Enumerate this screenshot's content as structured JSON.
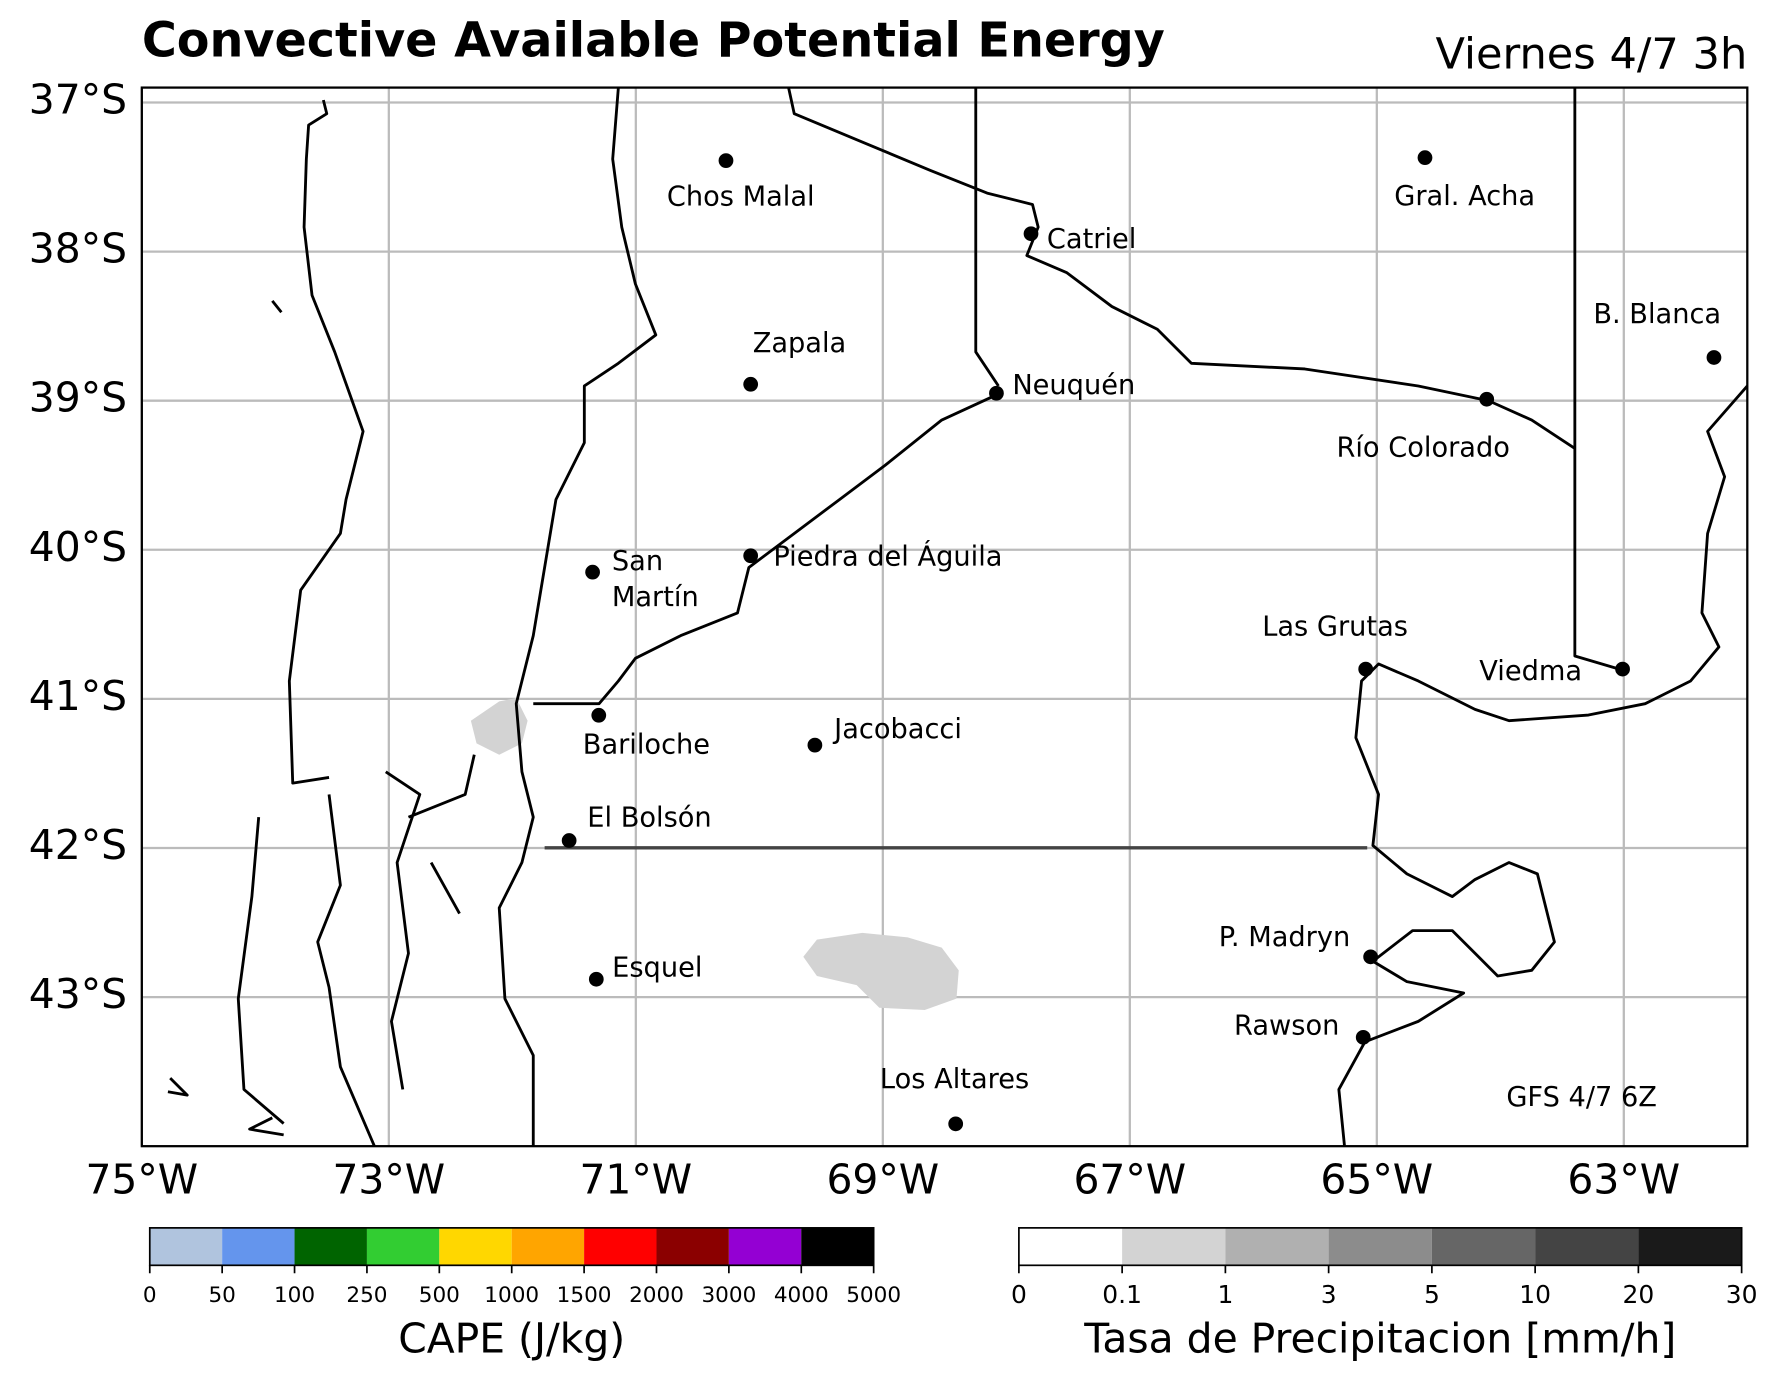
{
  "title": "Convective Available Potential Energy",
  "valid_time": "Viernes 4/7 3h",
  "annotation": "GFS 4/7 6Z",
  "map": {
    "xlim": [
      -75,
      -62
    ],
    "ylim": [
      -44,
      -36.9
    ],
    "grid": true,
    "xticks": [
      {
        "value": -75,
        "label": "75°W"
      },
      {
        "value": -73,
        "label": "73°W"
      },
      {
        "value": -71,
        "label": "71°W"
      },
      {
        "value": -69,
        "label": "69°W"
      },
      {
        "value": -67,
        "label": "67°W"
      },
      {
        "value": -65,
        "label": "65°W"
      },
      {
        "value": -63,
        "label": "63°W"
      }
    ],
    "yticks": [
      {
        "value": -37,
        "label": "37°S"
      },
      {
        "value": -38,
        "label": "38°S"
      },
      {
        "value": -39,
        "label": "39°S"
      },
      {
        "value": -40,
        "label": "40°S"
      },
      {
        "value": -41,
        "label": "41°S"
      },
      {
        "value": -42,
        "label": "42°S"
      },
      {
        "value": -43,
        "label": "43°S"
      }
    ],
    "cities": [
      {
        "label": "Chos Malal",
        "lon": -70.27,
        "lat": -37.39
      },
      {
        "label": "Gral. Acha",
        "lon": -64.61,
        "lat": -37.37
      },
      {
        "label": "Catriel",
        "lon": -67.8,
        "lat": -37.88
      },
      {
        "label": "B. Blanca",
        "lon": -62.27,
        "lat": -38.71
      },
      {
        "label": "Zapala",
        "lon": -70.07,
        "lat": -38.89
      },
      {
        "label": "Neuquén",
        "lon": -68.08,
        "lat": -38.95
      },
      {
        "label": "Río Colorado",
        "lon": -64.11,
        "lat": -38.99
      },
      {
        "label": "San\nMartín",
        "lon": -71.35,
        "lat": -40.15
      },
      {
        "label": "Piedra del Águila",
        "lon": -70.07,
        "lat": -40.04
      },
      {
        "label": "Las Grutas",
        "lon": -65.09,
        "lat": -40.8
      },
      {
        "label": "Viedma",
        "lon": -63.01,
        "lat": -40.8
      },
      {
        "label": "Bariloche",
        "lon": -71.3,
        "lat": -41.11
      },
      {
        "label": "Jacobacci",
        "lon": -69.55,
        "lat": -41.31
      },
      {
        "label": "El Bolsón",
        "lon": -71.54,
        "lat": -41.95
      },
      {
        "label": "Esquel",
        "lon": -71.32,
        "lat": -42.88
      },
      {
        "label": "P. Madryn",
        "lon": -65.05,
        "lat": -42.73
      },
      {
        "label": "Rawson",
        "lon": -65.11,
        "lat": -43.27
      },
      {
        "label": "Los Altares",
        "lon": -68.41,
        "lat": -43.85
      }
    ]
  },
  "colorbars": [
    {
      "label": "CAPE (J/kg)",
      "bounds": [
        0,
        50,
        100,
        250,
        500,
        1000,
        1500,
        2000,
        3000,
        4000,
        5000
      ],
      "colors": [
        "#b0c4de",
        "#6495ed",
        "#006400",
        "#32cd32",
        "#ffd700",
        "#ffa500",
        "#ff0000",
        "#8b0000",
        "#9400d3",
        "#000000"
      ]
    },
    {
      "label": "Tasa de Precipitacion [mm/h]",
      "bounds": [
        0,
        0.1,
        1,
        3,
        5,
        10,
        20,
        30
      ],
      "colors": [
        "#ffffff",
        "#d3d3d3",
        "#b0b0b0",
        "#8c8c8c",
        "#666666",
        "#444444",
        "#1a1a1a"
      ]
    }
  ]
}
